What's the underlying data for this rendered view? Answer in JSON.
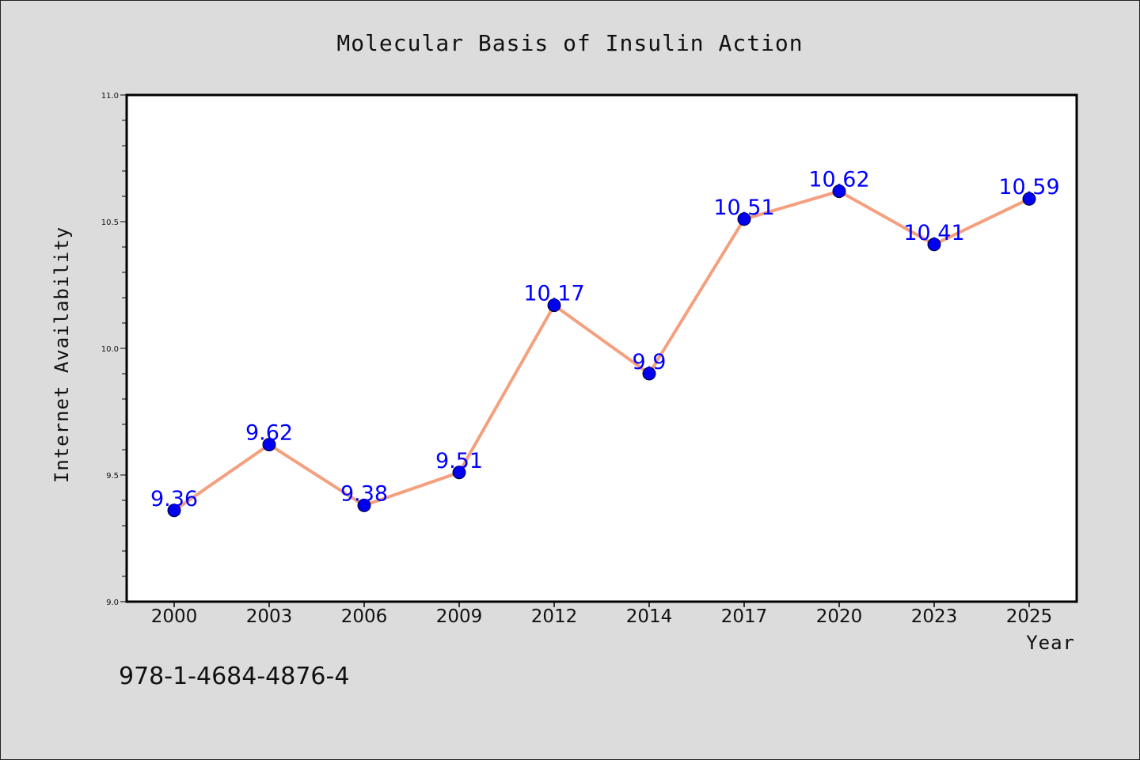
{
  "footnote": "978-1-4684-4876-4",
  "colors": {
    "line": "#f4a07e",
    "marker": "#0000ee",
    "data_label": "#0000ff",
    "background": "#dcdcdc",
    "plot_background": "#ffffff"
  },
  "chart_data": {
    "type": "line",
    "title": "Molecular Basis of Insulin Action",
    "xlabel": "Year",
    "ylabel": "Internet Availability",
    "categories": [
      "2000",
      "2003",
      "2006",
      "2009",
      "2012",
      "2014",
      "2017",
      "2020",
      "2023",
      "2025"
    ],
    "series": [
      {
        "values": [
          9.36,
          9.62,
          9.38,
          9.51,
          10.17,
          9.9,
          10.51,
          10.62,
          10.41,
          10.59
        ],
        "labels": [
          "9.36",
          "9.62",
          "9.38",
          "9.51",
          "10.17",
          "9.9",
          "10.51",
          "10.62",
          "10.41",
          "10.59"
        ]
      }
    ],
    "ylim": [
      9.0,
      11.0
    ],
    "yticks": [
      "9.0",
      "9.5",
      "10.0",
      "10.5",
      "11.0"
    ],
    "grid": false,
    "legend": "none"
  }
}
